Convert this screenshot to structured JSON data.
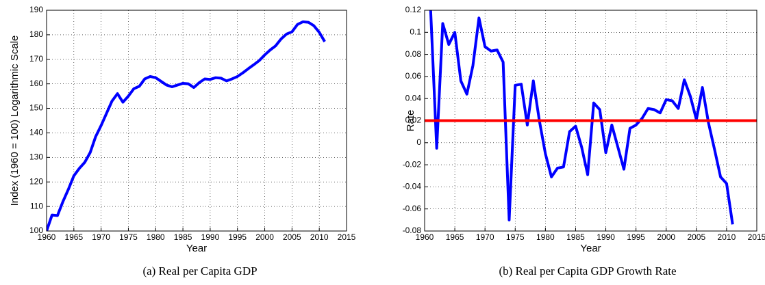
{
  "chart_data": [
    {
      "type": "line",
      "xlabel": "Year",
      "ylabel": "Index (1960 = 100) Logarithmic Scale",
      "caption": "(a) Real per Capita GDP",
      "x": [
        1960,
        1961,
        1962,
        1963,
        1964,
        1965,
        1966,
        1967,
        1968,
        1969,
        1970,
        1971,
        1972,
        1973,
        1974,
        1975,
        1976,
        1977,
        1978,
        1979,
        1980,
        1981,
        1982,
        1983,
        1984,
        1985,
        1986,
        1987,
        1988,
        1989,
        1990,
        1991,
        1992,
        1993,
        1994,
        1995,
        1996,
        1997,
        1998,
        1999,
        2000,
        2001,
        2002,
        2003,
        2004,
        2005,
        2006,
        2007,
        2008,
        2009,
        2010,
        2011
      ],
      "series": [
        {
          "color": "#0000ff",
          "values": [
            100,
            106.5,
            106.3,
            112,
            117,
            122.5,
            125.5,
            128,
            132,
            138.5,
            143,
            148,
            153,
            156,
            152.5,
            155,
            158,
            159,
            162,
            163,
            162.5,
            161,
            159.5,
            158.8,
            159.5,
            160.2,
            160,
            158.5,
            160.5,
            162,
            161.8,
            162.5,
            162.3,
            161.2,
            162,
            163,
            164.5,
            166.2,
            167.8,
            169.5,
            171.8,
            173.8,
            175.5,
            178.3,
            180.3,
            181.2,
            184.2,
            185.3,
            185.1,
            183.7,
            181,
            177.2
          ]
        }
      ],
      "xlim": [
        1960,
        2015
      ],
      "xticks": [
        1960,
        1965,
        1970,
        1975,
        1980,
        1985,
        1990,
        1995,
        2000,
        2005,
        2010,
        2015
      ],
      "ylim": [
        100,
        190
      ],
      "yticks": [
        100,
        110,
        120,
        130,
        140,
        150,
        160,
        170,
        180,
        190
      ],
      "grid": true
    },
    {
      "type": "line",
      "xlabel": "Year",
      "ylabel": "Rate",
      "caption": "(b) Real per Capita GDP Growth Rate",
      "x": [
        1961,
        1962,
        1963,
        1964,
        1965,
        1966,
        1967,
        1968,
        1969,
        1970,
        1971,
        1972,
        1973,
        1974,
        1975,
        1976,
        1977,
        1978,
        1979,
        1980,
        1981,
        1982,
        1983,
        1984,
        1985,
        1986,
        1987,
        1988,
        1989,
        1990,
        1991,
        1992,
        1993,
        1994,
        1995,
        1996,
        1997,
        1998,
        1999,
        2000,
        2001,
        2002,
        2003,
        2004,
        2005,
        2006,
        2007,
        2008,
        2009,
        2010,
        2011
      ],
      "series": [
        {
          "color": "#0000ff",
          "values": [
            0.12,
            -0.005,
            0.108,
            0.089,
            0.1,
            0.056,
            0.044,
            0.07,
            0.113,
            0.087,
            0.083,
            0.084,
            0.073,
            -0.07,
            0.052,
            0.053,
            0.016,
            0.056,
            0.02,
            -0.01,
            -0.031,
            -0.023,
            -0.022,
            0.01,
            0.015,
            -0.004,
            -0.029,
            0.036,
            0.03,
            -0.009,
            0.016,
            -0.004,
            -0.024,
            0.013,
            0.016,
            0.022,
            0.031,
            0.03,
            0.027,
            0.039,
            0.038,
            0.031,
            0.057,
            0.042,
            0.021,
            0.05,
            0.018,
            -0.006,
            -0.031,
            -0.037,
            -0.074
          ]
        }
      ],
      "reference_line": {
        "value": 0.02,
        "color": "#ff0000"
      },
      "xlim": [
        1960,
        2015
      ],
      "xticks": [
        1960,
        1965,
        1970,
        1975,
        1980,
        1985,
        1990,
        1995,
        2000,
        2005,
        2010,
        2015
      ],
      "ylim": [
        -0.08,
        0.12
      ],
      "yticks": [
        -0.08,
        -0.06,
        -0.04,
        -0.02,
        0,
        0.02,
        0.04,
        0.06,
        0.08,
        0.1,
        0.12
      ],
      "grid": true
    }
  ]
}
